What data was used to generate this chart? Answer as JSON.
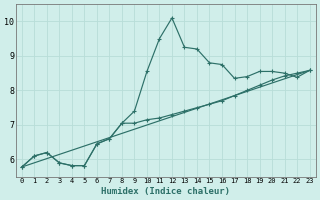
{
  "xlabel": "Humidex (Indice chaleur)",
  "xlim": [
    -0.5,
    23.5
  ],
  "ylim": [
    5.5,
    10.5
  ],
  "xticks": [
    0,
    1,
    2,
    3,
    4,
    5,
    6,
    7,
    8,
    9,
    10,
    11,
    12,
    13,
    14,
    15,
    16,
    17,
    18,
    19,
    20,
    21,
    22,
    23
  ],
  "yticks": [
    6,
    7,
    8,
    9,
    10
  ],
  "bg_color": "#d0eeea",
  "grid_color": "#b8ddd8",
  "line_color": "#2d7068",
  "line1_x": [
    0,
    1,
    2,
    3,
    4,
    5,
    6,
    7,
    8,
    9,
    10,
    11,
    12,
    13,
    14,
    15,
    16,
    17,
    18,
    19,
    20,
    21,
    22,
    23
  ],
  "line1_y": [
    5.78,
    6.1,
    6.2,
    5.9,
    5.82,
    5.82,
    6.45,
    6.6,
    7.05,
    7.4,
    8.55,
    9.5,
    10.1,
    9.25,
    9.2,
    8.8,
    8.75,
    8.35,
    8.4,
    8.55,
    8.55,
    8.5,
    8.38,
    8.58
  ],
  "line2_x": [
    0,
    1,
    2,
    3,
    4,
    5,
    6,
    7,
    8,
    9,
    10,
    11,
    12,
    13,
    14,
    15,
    16,
    17,
    18,
    19,
    20,
    21,
    22,
    23
  ],
  "line2_y": [
    5.78,
    6.1,
    6.2,
    5.9,
    5.82,
    5.82,
    6.45,
    6.6,
    7.05,
    7.05,
    7.15,
    7.2,
    7.3,
    7.4,
    7.5,
    7.6,
    7.7,
    7.85,
    8.0,
    8.15,
    8.3,
    8.42,
    8.5,
    8.58
  ],
  "line3_x": [
    0,
    23
  ],
  "line3_y": [
    5.78,
    8.58
  ]
}
